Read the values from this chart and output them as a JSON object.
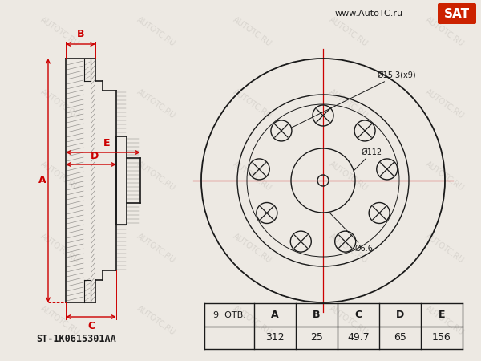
{
  "bg_color": "#ede9e3",
  "line_color": "#1a1a1a",
  "red_color": "#cc0000",
  "watermark_color": "#c8c4be",
  "part_number": "ST-1K0615301AA",
  "bolts": 9,
  "dim_A": 312,
  "dim_B": 25,
  "dim_C": "49.7",
  "dim_D": 65,
  "dim_E": 156,
  "website": "www.AutoTC.ru",
  "annotation_bolt": "Ø15.3(x9)",
  "annotation_pcd": "Ø112",
  "annotation_pilot": "Ø6.6",
  "table_headers": [
    "A",
    "B",
    "C",
    "D",
    "E"
  ],
  "table_values": [
    "312",
    "25",
    "49.7",
    "65",
    "156"
  ],
  "otv_label": "9  отв.",
  "sat_bg": "#cc2200",
  "sat_text": "SAT",
  "sat_text_color": "#ffffff"
}
